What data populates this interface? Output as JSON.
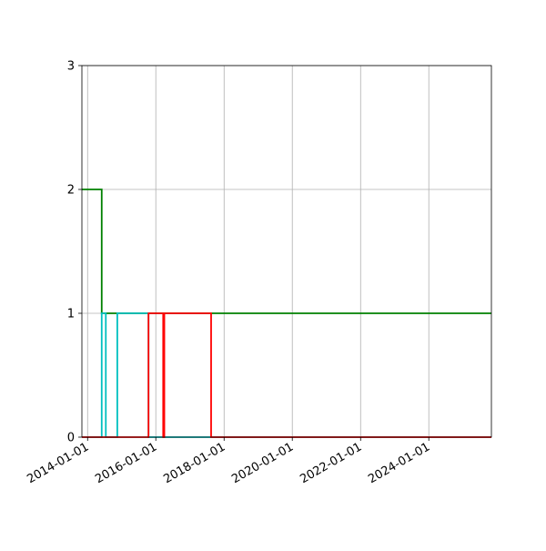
{
  "chart_data": {
    "type": "line",
    "step": "post",
    "title": "",
    "xlabel": "",
    "ylabel": "",
    "x_axis": {
      "type": "date",
      "range": [
        "2013-11-01",
        "2025-11-01"
      ],
      "ticks": [
        "2014-01-01",
        "2016-01-01",
        "2018-01-01",
        "2020-01-01",
        "2022-01-01",
        "2024-01-01"
      ]
    },
    "y_axis": {
      "range": [
        0,
        3
      ],
      "ticks": [
        0,
        1,
        2,
        3
      ]
    },
    "grid": true,
    "legend": "none",
    "series": [
      {
        "color": "#008000",
        "points": [
          [
            "2013-11-01",
            2
          ],
          [
            "2014-06-01",
            2
          ],
          [
            "2014-06-01",
            1
          ],
          [
            "2025-11-01",
            1
          ]
        ]
      },
      {
        "color": "#00bfbf",
        "points": [
          [
            "2013-11-01",
            0
          ],
          [
            "2014-06-01",
            0
          ],
          [
            "2014-06-01",
            1
          ],
          [
            "2014-07-15",
            1
          ],
          [
            "2014-07-15",
            0
          ],
          [
            "2014-11-15",
            0
          ],
          [
            "2014-11-15",
            1
          ],
          [
            "2015-10-15",
            1
          ],
          [
            "2015-10-15",
            0
          ],
          [
            "2025-11-01",
            0
          ]
        ]
      },
      {
        "color": "#ff0000",
        "points": [
          [
            "2013-11-01",
            0
          ],
          [
            "2015-10-15",
            0
          ],
          [
            "2015-10-15",
            1
          ],
          [
            "2016-03-20",
            1
          ],
          [
            "2016-03-20",
            0
          ],
          [
            "2016-04-01",
            0
          ],
          [
            "2016-04-01",
            1
          ],
          [
            "2017-08-15",
            1
          ],
          [
            "2017-08-15",
            0
          ],
          [
            "2025-11-01",
            0
          ]
        ]
      }
    ]
  }
}
